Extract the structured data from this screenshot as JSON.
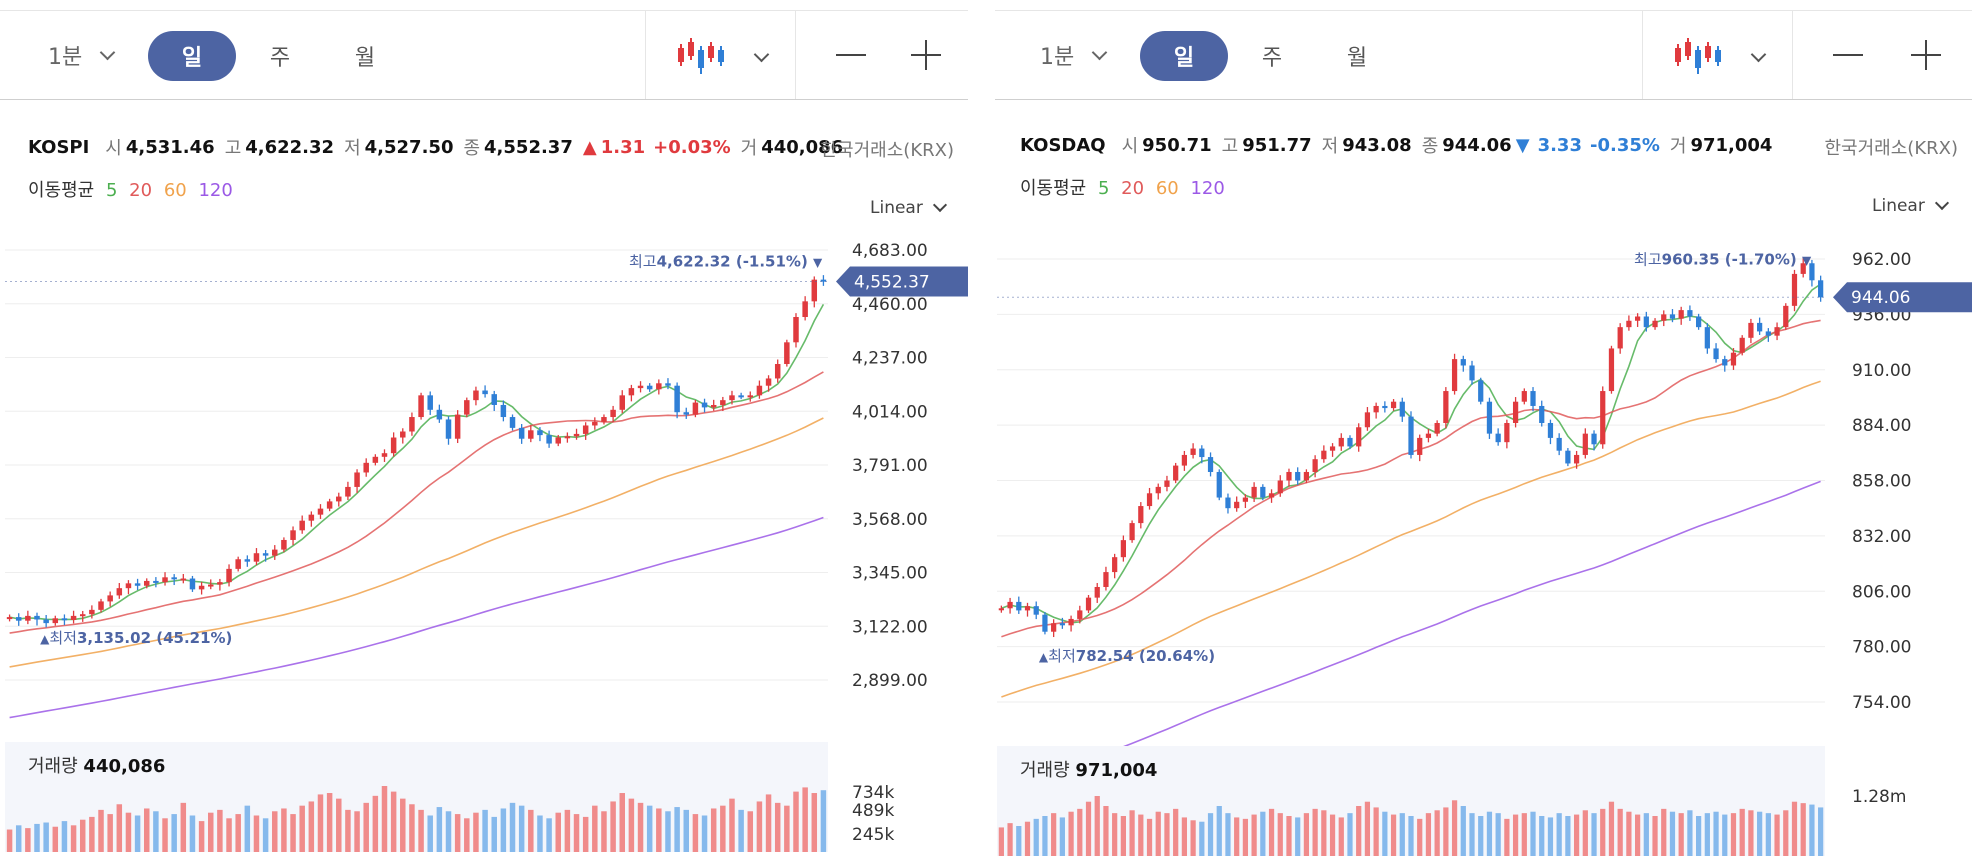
{
  "chart_data": [
    {
      "type": "candlestick",
      "name": "KOSPI",
      "toolbar": {
        "interval_label": "1분",
        "tabs": [
          "일",
          "주",
          "월"
        ],
        "active_tab": "일"
      },
      "info": {
        "index": "KOSPI",
        "open_label": "시",
        "open": "4,531.46",
        "high_label": "고",
        "high": "4,622.32",
        "low_label": "저",
        "low": "4,527.50",
        "close_label": "종",
        "close": "4,552.37",
        "change_arrow": "▲",
        "change": "1.31",
        "change_pct": "+0.03%",
        "direction": "up",
        "volume_label": "거",
        "volume": "440,086"
      },
      "exchange": "한국거래소(KRX)",
      "ma_label": "이동평균",
      "ma_periods": [
        "5",
        "20",
        "60",
        "120"
      ],
      "ma_colors": [
        "#4caf50",
        "#e05a5a",
        "#f0a24b",
        "#9b59e6"
      ],
      "scale": "Linear",
      "y_ticks": [
        "4,683.00",
        "4,460.00",
        "4,237.00",
        "4,014.00",
        "3,791.00",
        "3,568.00",
        "3,345.00",
        "3,122.00",
        "2,899.00"
      ],
      "ylim": [
        2899,
        4683
      ],
      "current_price": "4,552.37",
      "max_marker": {
        "prefix": "최고",
        "value": "4,622.32 (-1.51%)",
        "arrow": "▼"
      },
      "min_marker": {
        "prefix": "최저",
        "value": "3,135.02 (45.21%)",
        "arrow": "▲"
      },
      "volume": {
        "label": "거래량",
        "value": "440,086",
        "ticks": [
          "734k",
          "489k",
          "245k"
        ]
      },
      "colors": {
        "up": "#e03a3e",
        "down": "#2f7fd6",
        "accent": "#4d64a3",
        "up_vol": "#f08b8b",
        "down_vol": "#86b9ec"
      },
      "closes": [
        3160,
        3145,
        3165,
        3150,
        3135,
        3155,
        3148,
        3165,
        3172,
        3190,
        3225,
        3250,
        3280,
        3300,
        3290,
        3310,
        3305,
        3325,
        3318,
        3320,
        3275,
        3290,
        3295,
        3305,
        3360,
        3400,
        3390,
        3425,
        3415,
        3440,
        3480,
        3520,
        3560,
        3585,
        3610,
        3640,
        3660,
        3700,
        3760,
        3800,
        3825,
        3840,
        3905,
        3930,
        3990,
        4080,
        4020,
        3980,
        3900,
        4000,
        4060,
        4100,
        4085,
        4040,
        3990,
        3945,
        3900,
        3935,
        3915,
        3880,
        3905,
        3910,
        3920,
        3955,
        3970,
        3990,
        4020,
        4080,
        4110,
        4120,
        4105,
        4130,
        4120,
        4010,
        4000,
        4050,
        4030,
        4040,
        4060,
        4080,
        4075,
        4080,
        4120,
        4150,
        4210,
        4300,
        4405,
        4470,
        4560,
        4552
      ],
      "volumes": [
        160,
        190,
        170,
        200,
        210,
        180,
        220,
        190,
        230,
        250,
        300,
        270,
        340,
        280,
        260,
        310,
        290,
        240,
        270,
        350,
        260,
        220,
        280,
        300,
        240,
        270,
        330,
        260,
        240,
        290,
        310,
        270,
        330,
        360,
        410,
        420,
        380,
        300,
        290,
        350,
        400,
        470,
        430,
        380,
        340,
        300,
        260,
        320,
        290,
        270,
        240,
        280,
        300,
        250,
        310,
        350,
        330,
        300,
        260,
        240,
        280,
        300,
        270,
        250,
        330,
        290,
        360,
        420,
        380,
        350,
        330,
        310,
        290,
        320,
        300,
        270,
        260,
        310,
        330,
        380,
        300,
        290,
        360,
        410,
        350,
        330,
        430,
        460,
        420,
        440
      ]
    },
    {
      "type": "candlestick",
      "name": "KOSDAQ",
      "toolbar": {
        "interval_label": "1분",
        "tabs": [
          "일",
          "주",
          "월"
        ],
        "active_tab": "일"
      },
      "info": {
        "index": "KOSDAQ",
        "open_label": "시",
        "open": "950.71",
        "high_label": "고",
        "high": "951.77",
        "low_label": "저",
        "low": "943.08",
        "close_label": "종",
        "close": "944.06",
        "change_arrow": "▼",
        "change": "3.33",
        "change_pct": "-0.35%",
        "direction": "down",
        "volume_label": "거",
        "volume": "971,004"
      },
      "exchange": "한국거래소(KRX)",
      "ma_label": "이동평균",
      "ma_periods": [
        "5",
        "20",
        "60",
        "120"
      ],
      "ma_colors": [
        "#4caf50",
        "#e05a5a",
        "#f0a24b",
        "#9b59e6"
      ],
      "scale": "Linear",
      "y_ticks": [
        "962.00",
        "936.00",
        "910.00",
        "884.00",
        "858.00",
        "832.00",
        "806.00",
        "780.00",
        "754.00"
      ],
      "ylim": [
        754,
        962
      ],
      "current_price": "944.06",
      "max_marker": {
        "prefix": "최고",
        "value": "960.35 (-1.70%)",
        "arrow": "▼"
      },
      "min_marker": {
        "prefix": "최저",
        "value": "782.54 (20.64%)",
        "arrow": "▲"
      },
      "volume": {
        "label": "거래량",
        "value": "971,004",
        "ticks": [
          "1.28m"
        ]
      },
      "colors": {
        "up": "#e03a3e",
        "down": "#2f7fd6",
        "accent": "#4d64a3",
        "up_vol": "#f08b8b",
        "down_vol": "#86b9ec"
      },
      "closes": [
        798,
        801,
        797,
        799,
        795,
        787,
        791,
        790,
        793,
        797,
        803,
        808,
        815,
        822,
        830,
        838,
        846,
        852,
        855,
        858,
        865,
        870,
        873,
        869,
        862,
        850,
        845,
        848,
        850,
        855,
        850,
        852,
        858,
        862,
        858,
        862,
        868,
        872,
        874,
        878,
        874,
        883,
        890,
        893,
        892,
        895,
        888,
        870,
        878,
        880,
        885,
        900,
        915,
        912,
        905,
        895,
        880,
        876,
        885,
        895,
        900,
        893,
        885,
        878,
        872,
        866,
        870,
        880,
        875,
        900,
        920,
        930,
        933,
        935,
        930,
        933,
        936,
        934,
        938,
        935,
        930,
        920,
        915,
        912,
        918,
        925,
        932,
        928,
        926,
        930,
        940,
        955,
        960,
        952,
        944
      ],
      "volumes": [
        200,
        230,
        210,
        240,
        260,
        280,
        300,
        270,
        310,
        330,
        380,
        420,
        350,
        300,
        280,
        320,
        290,
        260,
        310,
        300,
        330,
        270,
        250,
        240,
        300,
        350,
        300,
        270,
        260,
        290,
        310,
        330,
        300,
        280,
        270,
        300,
        330,
        320,
        290,
        270,
        300,
        350,
        380,
        340,
        310,
        290,
        300,
        280,
        260,
        300,
        320,
        340,
        390,
        350,
        300,
        280,
        310,
        300,
        260,
        290,
        300,
        310,
        280,
        270,
        300,
        280,
        290,
        320,
        300,
        330,
        380,
        330,
        310,
        290,
        300,
        280,
        330,
        310,
        300,
        320,
        280,
        300,
        310,
        290,
        300,
        330,
        320,
        310,
        300,
        290,
        320,
        380,
        370,
        360,
        340
      ]
    }
  ]
}
